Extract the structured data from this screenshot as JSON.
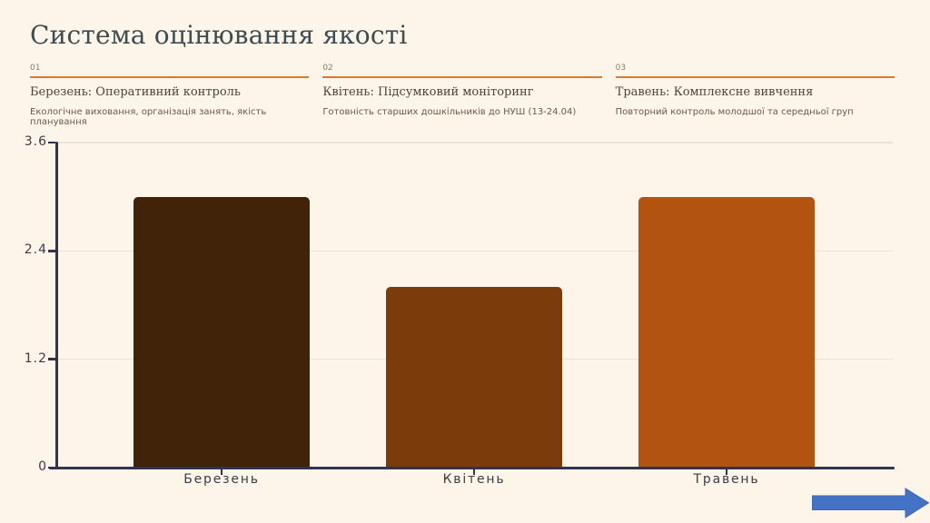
{
  "title": "Система оцінювання якості",
  "sections": [
    {
      "number": "01",
      "heading": "Березень: Оперативний контроль",
      "subtext": "Екологічне виховання, організація занять, якість планування"
    },
    {
      "number": "02",
      "heading": "Квітень: Підсумковий моніторинг",
      "subtext": "Готовність старших дошкільників до НУШ (13-24.04)"
    },
    {
      "number": "03",
      "heading": "Травень: Комплексне вивчення",
      "subtext": "Повторний контроль молодшої та середньої груп"
    }
  ],
  "chart_data": {
    "type": "bar",
    "categories": [
      "Березень",
      "Квітень",
      "Травень"
    ],
    "values": [
      3.0,
      2.0,
      3.0
    ],
    "title": "",
    "xlabel": "",
    "ylabel": "",
    "ylim": [
      0,
      3.6
    ],
    "yticks": [
      0,
      1.2,
      2.4,
      3.6
    ],
    "ytick_labels": [
      "0",
      "1.2",
      "2.4",
      "3.6"
    ],
    "grid": true,
    "legend": false,
    "bar_colors": [
      "#402308",
      "#7b3b0b",
      "#b25310"
    ]
  },
  "colors": {
    "background": "#fdf4ea",
    "title_text": "#3f4d50",
    "section_number": "#8d7b66",
    "section_rule": "#e0772e",
    "section_heading": "#4b443c",
    "section_subtext": "#70594a",
    "axis": "#34334b",
    "tick_label": "#3d3c45",
    "gridline": "#ece3d8",
    "arrow": "#4472c4"
  },
  "icons": {
    "next_arrow": "right-arrow"
  }
}
